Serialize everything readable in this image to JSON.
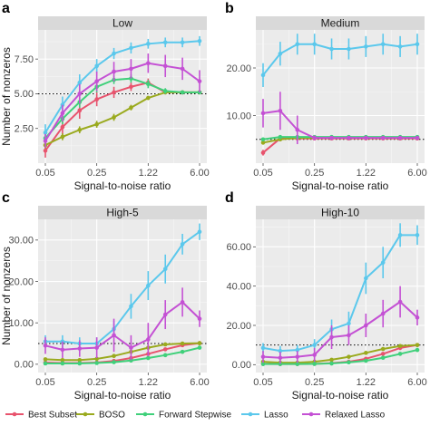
{
  "chart_data": [
    {
      "type": "line",
      "panel_letter": "a",
      "title": "Low",
      "xlabel": "Signal-to-noise ratio",
      "ylabel": "Number of nonzeros",
      "x_tick_labels": [
        "0.05",
        "0.25",
        "1.22",
        "6.00"
      ],
      "y_ticks": [
        2.5,
        5.0,
        7.5
      ],
      "y_tick_labels": [
        "2.50",
        "5.00",
        "7.50"
      ],
      "ylim": [
        0,
        9.6
      ],
      "x": [
        0,
        1,
        2,
        3,
        4,
        5,
        6,
        7,
        8,
        9
      ],
      "reference_line": 5,
      "series": [
        {
          "name": "Best Subset",
          "values": [
            0.9,
            2.6,
            3.8,
            4.6,
            5.1,
            5.5,
            5.8,
            5.1,
            5.1,
            5.1
          ],
          "err": [
            0.5,
            0.6,
            0.6,
            0.5,
            0.4,
            0.3,
            0.3,
            0.1,
            0.1,
            0.1
          ]
        },
        {
          "name": "BOSO",
          "values": [
            1.3,
            1.9,
            2.4,
            2.8,
            3.3,
            4.0,
            4.7,
            5.1,
            5.1,
            5.1
          ],
          "err": [
            0.25,
            0.25,
            0.25,
            0.25,
            0.25,
            0.2,
            0.15,
            0.1,
            0.05,
            0.05
          ]
        },
        {
          "name": "Forward Stepwise",
          "values": [
            1.8,
            3.2,
            4.4,
            5.5,
            6.0,
            6.1,
            5.7,
            5.2,
            5.1,
            5.1
          ],
          "err": [
            0.4,
            0.4,
            0.4,
            0.4,
            0.3,
            0.3,
            0.3,
            0.2,
            0.1,
            0.1
          ]
        },
        {
          "name": "Lasso",
          "values": [
            2.2,
            4.2,
            5.8,
            7.0,
            7.9,
            8.3,
            8.6,
            8.7,
            8.7,
            8.8
          ],
          "err": [
            0.6,
            0.6,
            0.6,
            0.5,
            0.4,
            0.4,
            0.35,
            0.35,
            0.35,
            0.35
          ]
        },
        {
          "name": "Relaxed Lasso",
          "values": [
            1.6,
            3.6,
            5.0,
            5.9,
            6.6,
            6.8,
            7.2,
            7.0,
            6.8,
            5.9
          ],
          "err": [
            0.5,
            0.6,
            0.7,
            0.7,
            0.7,
            0.7,
            0.7,
            0.8,
            0.8,
            0.8
          ]
        }
      ]
    },
    {
      "type": "line",
      "panel_letter": "b",
      "title": "Medium",
      "xlabel": "Signal-to-noise ratio",
      "ylabel": "",
      "x_tick_labels": [
        "0.05",
        "0.25",
        "1.22",
        "6.00"
      ],
      "y_ticks": [
        10,
        20
      ],
      "y_tick_labels": [
        "10.00",
        "20.00"
      ],
      "ylim": [
        0,
        28
      ],
      "x": [
        0,
        1,
        2,
        3,
        4,
        5,
        6,
        7,
        8,
        9
      ],
      "reference_line": 5,
      "series": [
        {
          "name": "Best Subset",
          "values": [
            2.2,
            5.2,
            5.2,
            5.2,
            5.2,
            5.2,
            5.2,
            5.2,
            5.2,
            5.2
          ],
          "err": [
            0.6,
            0.4,
            0.2,
            0.1,
            0.1,
            0.1,
            0.1,
            0.1,
            0.1,
            0.1
          ]
        },
        {
          "name": "BOSO",
          "values": [
            4.3,
            5.0,
            5.3,
            5.3,
            5.3,
            5.3,
            5.3,
            5.3,
            5.3,
            5.3
          ],
          "err": [
            0.3,
            0.3,
            0.2,
            0.1,
            0.1,
            0.1,
            0.1,
            0.1,
            0.1,
            0.1
          ]
        },
        {
          "name": "Forward Stepwise",
          "values": [
            5.0,
            5.5,
            5.5,
            5.5,
            5.5,
            5.5,
            5.5,
            5.5,
            5.5,
            5.5
          ],
          "err": [
            0.3,
            0.3,
            0.2,
            0.1,
            0.1,
            0.1,
            0.1,
            0.1,
            0.1,
            0.1
          ]
        },
        {
          "name": "Lasso",
          "values": [
            18.5,
            23.0,
            25.0,
            25.0,
            24.0,
            24.0,
            24.5,
            25.0,
            24.5,
            25.0
          ],
          "err": [
            2.5,
            2.5,
            2.2,
            2.2,
            2.2,
            2.2,
            2.2,
            2.2,
            2.2,
            2.2
          ]
        },
        {
          "name": "Relaxed Lasso",
          "values": [
            10.5,
            11.0,
            7.0,
            5.3,
            5.3,
            5.3,
            5.3,
            5.3,
            5.3,
            5.3
          ],
          "err": [
            3.0,
            4.0,
            3.0,
            0.5,
            0.1,
            0.1,
            0.1,
            0.1,
            0.1,
            0.1
          ]
        }
      ]
    },
    {
      "type": "line",
      "panel_letter": "c",
      "title": "High-5",
      "xlabel": "Signal-to-noise ratio",
      "ylabel": "Number of nonzeros",
      "x_tick_labels": [
        "0.05",
        "0.25",
        "1.22",
        "6.00"
      ],
      "y_ticks": [
        0,
        10,
        20,
        30
      ],
      "y_tick_labels": [
        "0.00",
        "10.00",
        "20.00",
        "30.00"
      ],
      "ylim": [
        -2,
        35
      ],
      "x": [
        0,
        1,
        2,
        3,
        4,
        5,
        6,
        7,
        8,
        9
      ],
      "reference_line": 5,
      "series": [
        {
          "name": "Best Subset",
          "values": [
            0.4,
            0.3,
            0.3,
            0.4,
            0.8,
            1.5,
            2.5,
            3.6,
            4.6,
            5.1
          ],
          "err": [
            0.3,
            0.3,
            0.3,
            0.3,
            0.3,
            0.4,
            0.4,
            0.4,
            0.3,
            0.3
          ]
        },
        {
          "name": "BOSO",
          "values": [
            1.2,
            1.0,
            1.0,
            1.3,
            2.0,
            3.0,
            4.0,
            4.8,
            5.0,
            5.1
          ],
          "err": [
            0.4,
            0.4,
            0.4,
            0.4,
            0.4,
            0.3,
            0.3,
            0.2,
            0.2,
            0.1
          ]
        },
        {
          "name": "Forward Stepwise",
          "values": [
            0.2,
            0.2,
            0.2,
            0.3,
            0.5,
            0.9,
            1.5,
            2.2,
            3.0,
            4.0
          ],
          "err": [
            0.2,
            0.2,
            0.2,
            0.2,
            0.2,
            0.3,
            0.3,
            0.3,
            0.4,
            0.4
          ]
        },
        {
          "name": "Lasso",
          "values": [
            5.5,
            5.5,
            5.0,
            5.0,
            8.5,
            14.0,
            19.0,
            23.0,
            29.0,
            32.0
          ],
          "err": [
            1.5,
            1.5,
            1.5,
            1.5,
            2.0,
            3.0,
            3.5,
            3.5,
            2.5,
            2.0
          ]
        },
        {
          "name": "Relaxed Lasso",
          "values": [
            4.5,
            3.5,
            3.8,
            4.0,
            7.0,
            4.0,
            6.0,
            12.0,
            15.0,
            11.0
          ],
          "err": [
            2.0,
            2.0,
            2.0,
            2.5,
            4.0,
            3.0,
            4.0,
            3.5,
            3.5,
            2.0
          ]
        }
      ]
    },
    {
      "type": "line",
      "panel_letter": "d",
      "title": "High-10",
      "xlabel": "Signal-to-noise ratio",
      "ylabel": "",
      "x_tick_labels": [
        "0.05",
        "0.25",
        "1.22",
        "6.00"
      ],
      "y_ticks": [
        0,
        20,
        40,
        60
      ],
      "y_tick_labels": [
        "0.00",
        "20.00",
        "40.00",
        "60.00"
      ],
      "ylim": [
        -4,
        74
      ],
      "x": [
        0,
        1,
        2,
        3,
        4,
        5,
        6,
        7,
        8,
        9
      ],
      "reference_line": 10,
      "series": [
        {
          "name": "Best Subset",
          "values": [
            0.4,
            0.3,
            0.3,
            0.4,
            0.8,
            1.5,
            3.0,
            5.5,
            8.5,
            10.0
          ],
          "err": [
            0.3,
            0.3,
            0.3,
            0.3,
            0.3,
            0.5,
            0.6,
            0.8,
            1.0,
            0.8
          ]
        },
        {
          "name": "BOSO",
          "values": [
            1.5,
            1.0,
            1.0,
            1.5,
            2.5,
            4.0,
            6.0,
            8.0,
            9.5,
            10.0
          ],
          "err": [
            0.5,
            0.4,
            0.4,
            0.4,
            0.5,
            0.6,
            0.6,
            0.6,
            0.5,
            0.4
          ]
        },
        {
          "name": "Forward Stepwise",
          "values": [
            0.3,
            0.3,
            0.3,
            0.4,
            0.6,
            1.2,
            2.0,
            3.5,
            5.5,
            7.5
          ],
          "err": [
            0.3,
            0.3,
            0.3,
            0.3,
            0.3,
            0.4,
            0.5,
            0.6,
            0.8,
            1.0
          ]
        },
        {
          "name": "Lasso",
          "values": [
            8.5,
            7.0,
            7.5,
            10.0,
            18.0,
            21.0,
            44.0,
            52.0,
            66.0,
            66.0
          ],
          "err": [
            2.5,
            2.5,
            2.5,
            3.0,
            5.0,
            6.0,
            8.0,
            8.0,
            6.0,
            5.0
          ]
        },
        {
          "name": "Relaxed Lasso",
          "values": [
            4.0,
            3.5,
            4.0,
            5.0,
            14.0,
            15.0,
            20.0,
            26.0,
            32.0,
            24.0
          ],
          "err": [
            3.0,
            3.0,
            3.0,
            3.5,
            6.0,
            5.0,
            6.0,
            7.0,
            8.0,
            4.0
          ]
        }
      ]
    }
  ],
  "colors": {
    "Best Subset": "#e8536d",
    "BOSO": "#9aaa1e",
    "Forward Stepwise": "#3fd07a",
    "Lasso": "#5bc8ec",
    "Relaxed Lasso": "#c451d4"
  },
  "legend": {
    "placement": "bottom",
    "items": [
      {
        "key": "Best Subset",
        "label": "Best Subset"
      },
      {
        "key": "BOSO",
        "label": "BOSO"
      },
      {
        "key": "Forward Stepwise",
        "label": "Forward Stepwise"
      },
      {
        "key": "Lasso",
        "label": "Lasso"
      },
      {
        "key": "Relaxed Lasso",
        "label": "Relaxed Lasso"
      }
    ]
  },
  "panel_background": "#ebebeb",
  "grid": true
}
